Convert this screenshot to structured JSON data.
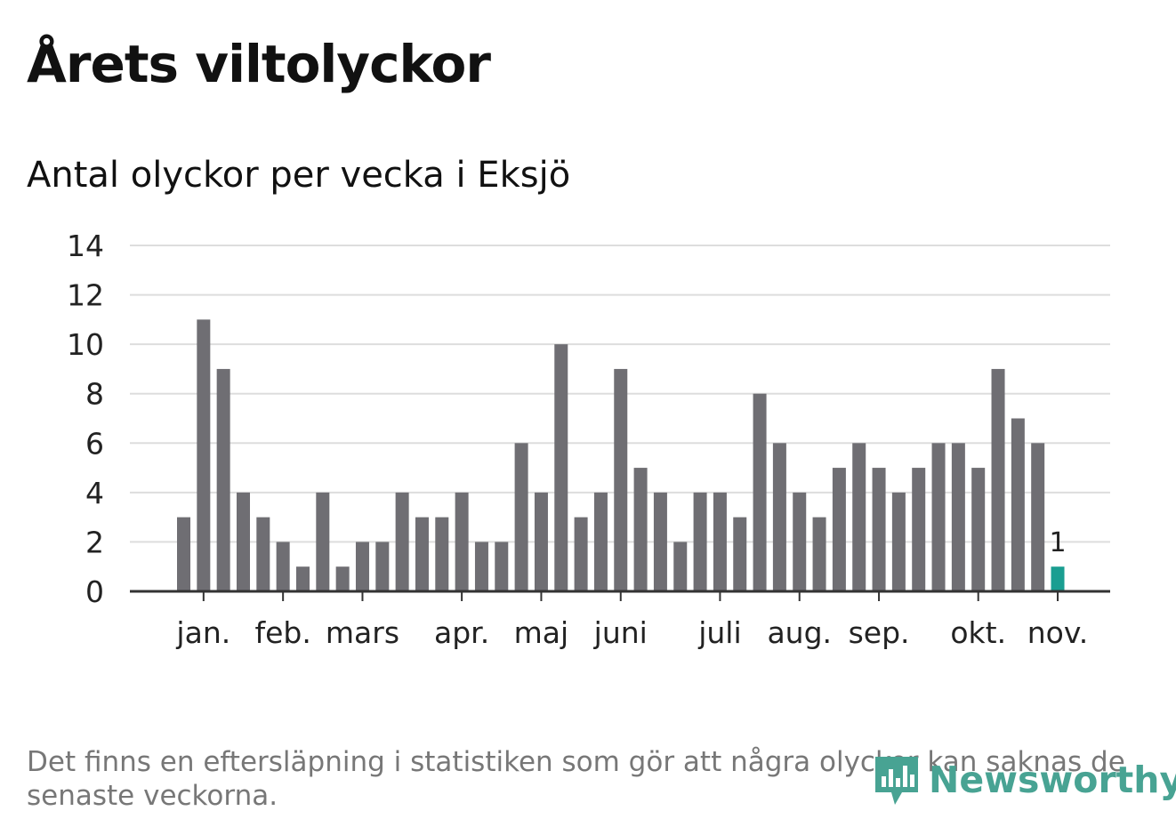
{
  "title": "Årets viltolyckor",
  "subtitle": "Antal olyckor per vecka i Eksjö",
  "note": "Det finns en eftersläpning i statistiken som gör att några olyckor kan saknas de senaste veckorna.",
  "brand": {
    "name": "Newsworthy",
    "icon": "bar-chart-speech-bubble-icon",
    "color": "#48a393"
  },
  "colors": {
    "bar": "#6f6e73",
    "highlight": "#1a9e91",
    "grid": "#dddddd",
    "axis": "#333333"
  },
  "chart_data": {
    "type": "bar",
    "title": "Antal olyckor per vecka i Eksjö",
    "xlabel": "",
    "ylabel": "",
    "ylim": [
      0,
      14
    ],
    "yticks": [
      0,
      2,
      4,
      6,
      8,
      10,
      12,
      14
    ],
    "values": [
      3,
      11,
      9,
      4,
      3,
      2,
      1,
      4,
      1,
      2,
      2,
      4,
      3,
      3,
      4,
      2,
      2,
      6,
      4,
      10,
      3,
      4,
      9,
      5,
      4,
      2,
      4,
      4,
      3,
      8,
      6,
      4,
      3,
      5,
      6,
      5,
      4,
      5,
      6,
      6,
      5,
      9,
      7,
      6,
      1
    ],
    "highlight_index": 44,
    "highlight_label": "1",
    "month_labels": [
      {
        "label": "jan.",
        "week": 1
      },
      {
        "label": "feb.",
        "week": 5
      },
      {
        "label": "mars",
        "week": 9
      },
      {
        "label": "apr.",
        "week": 14
      },
      {
        "label": "maj",
        "week": 18
      },
      {
        "label": "juni",
        "week": 22
      },
      {
        "label": "juli",
        "week": 27
      },
      {
        "label": "aug.",
        "week": 31
      },
      {
        "label": "sep.",
        "week": 35
      },
      {
        "label": "okt.",
        "week": 40
      },
      {
        "label": "nov.",
        "week": 44
      }
    ],
    "grid": true,
    "legend": "none"
  }
}
